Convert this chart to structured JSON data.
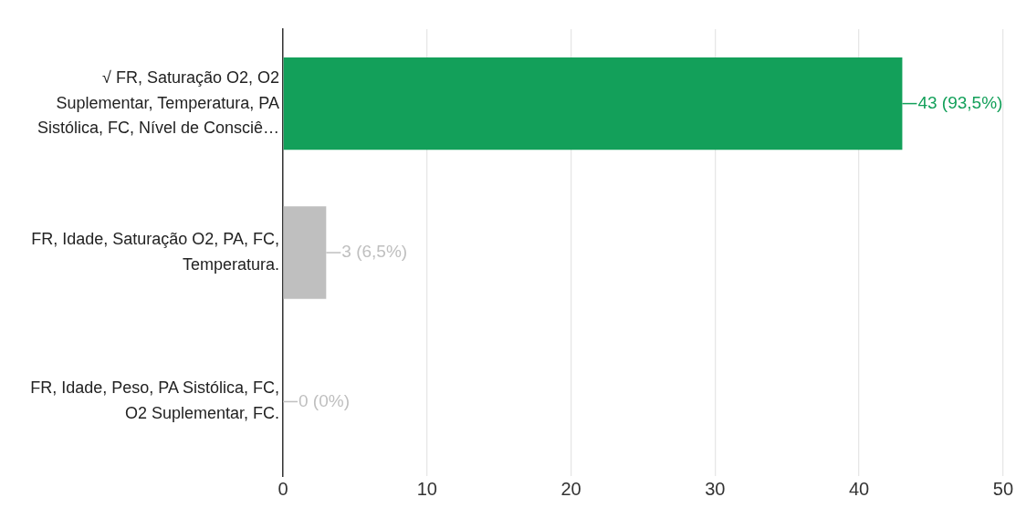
{
  "chart_data": {
    "type": "bar",
    "orientation": "horizontal",
    "categories": [
      "√ FR, Saturação O2, O2 Suplementar, Temperatura, PA Sistólica, FC, Nível de Consciê…",
      "FR, Idade, Saturação O2, PA, FC, Temperatura.",
      "FR, Idade, Peso, PA Sistólica, FC, O2 Suplementar, FC."
    ],
    "values": [
      43,
      3,
      0
    ],
    "colors": [
      "#13a05a",
      "#bfbfbf",
      "#bfbfbf"
    ],
    "value_labels": [
      "43 (93,5%)",
      "3 (6,5%)",
      "0 (0%)"
    ],
    "xlim": [
      0,
      50
    ],
    "xticks": [
      0,
      10,
      20,
      30,
      40,
      50
    ],
    "grid": "x",
    "legend": false
  }
}
